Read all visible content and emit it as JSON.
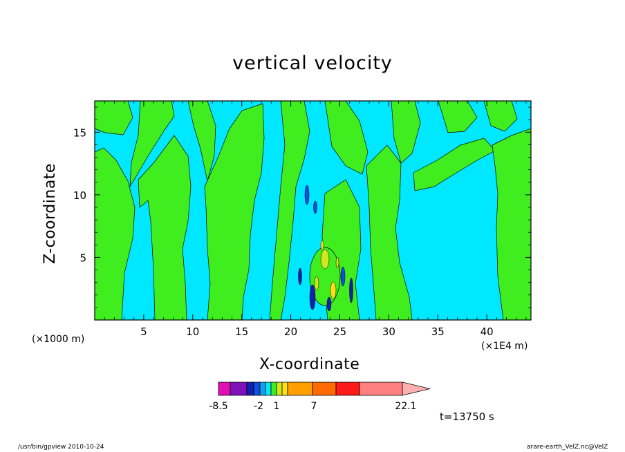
{
  "chart_data": {
    "type": "heatmap",
    "title": "vertical velocity",
    "xlabel": "X-coordinate",
    "ylabel": "Z-coordinate",
    "x_unit": "(×1E4 m)",
    "y_unit": "(×1000 m)",
    "xlim": [
      0,
      44.5
    ],
    "ylim": [
      0,
      17.5
    ],
    "x_ticks": [
      5,
      10,
      15,
      20,
      25,
      30,
      35,
      40
    ],
    "y_ticks": [
      5,
      10,
      15
    ],
    "grid": false,
    "colorbar": {
      "levels_labeled": [
        "-8.5",
        "-2",
        "1",
        "7",
        "22.1"
      ],
      "colors": [
        "#e00fb4",
        "#8010b8",
        "#1020b0",
        "#1050e0",
        "#10a0f0",
        "#00e8ff",
        "#40ee20",
        "#d0e820",
        "#ffe010",
        "#ffa000",
        "#ff6a00",
        "#ff1a1a",
        "#ff8080",
        "#ffb0b0"
      ],
      "orientation": "horizontal",
      "placement": "bottom"
    },
    "annotation_time": "t=13750 s"
  },
  "footer": {
    "left": "/usr/bin/gpview   2010-10-24",
    "right": "arare-earth_VelZ.nc@VelZ"
  },
  "colors": {
    "background": "#ffffff",
    "field_positive": "#00e8ff",
    "field_negative": "#40ee20"
  }
}
